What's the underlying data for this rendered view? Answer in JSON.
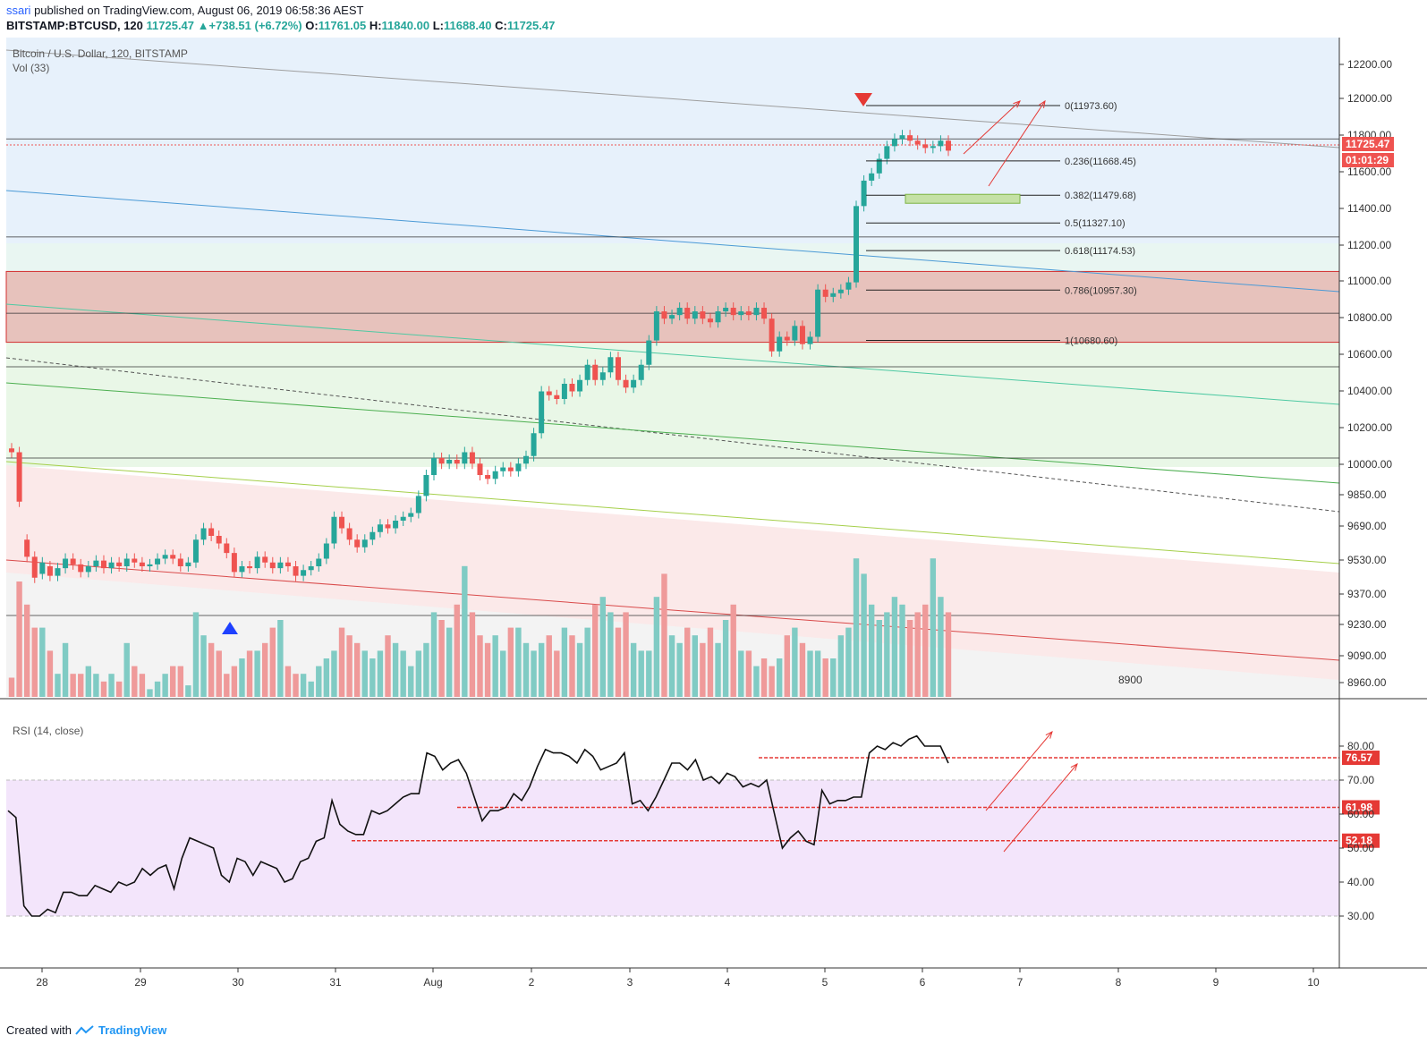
{
  "header": {
    "publisher": "ssari",
    "published_text": "published on TradingView.com, August 06, 2019 06:58:36 AEST",
    "symbol": "BITSTAMP:BTCUSD, 120",
    "last": "11725.47",
    "change": "▲+738.51 (+6.72%)",
    "o_label": "O:",
    "o_value": "11761.05",
    "h_label": "H:",
    "h_value": "11840.00",
    "l_label": "L:",
    "l_value": "11688.40",
    "c_label": "C:",
    "c_value": "11725.47"
  },
  "legend": {
    "series": "Bitcoin / U.S. Dollar, 120, BITSTAMP",
    "volume": "Vol (33)",
    "rsi": "RSI (14, close)"
  },
  "footer": {
    "created_with": "Created with",
    "brand": "TradingView"
  },
  "colors": {
    "up": "#26a69a",
    "down": "#ef5350",
    "red_line": "#e00000",
    "resistance": "#d32f2f"
  },
  "chart_data": [
    {
      "type": "candlestick",
      "title": "Bitcoin / U.S. Dollar, 120, BITSTAMP",
      "x_tick_labels": [
        "28",
        "29",
        "30",
        "31",
        "Aug",
        "2",
        "3",
        "4",
        "5",
        "6",
        "7",
        "8",
        "9",
        "10"
      ],
      "y_tick_labels": [
        "12200.00",
        "12000.00",
        "11800.00",
        "11600.00",
        "11400.00",
        "11200.00",
        "11000.00",
        "10800.00",
        "10600.00",
        "10400.00",
        "10200.00",
        "10000.00",
        "9850.00",
        "9690.00",
        "9530.00",
        "9370.00",
        "9230.00",
        "9090.00",
        "8960.00"
      ],
      "price_label": "11725.47",
      "countdown_label": "01:01:29",
      "extra_label": "8900",
      "fib_levels": [
        {
          "ratio": "0",
          "price": 11973.6,
          "label": "0(11973.60)"
        },
        {
          "ratio": "0.236",
          "price": 11668.45,
          "label": "0.236(11668.45)"
        },
        {
          "ratio": "0.382",
          "price": 11479.68,
          "label": "0.382(11479.68)"
        },
        {
          "ratio": "0.5",
          "price": 11327.1,
          "label": "0.5(11327.10)"
        },
        {
          "ratio": "0.618",
          "price": 11174.53,
          "label": "0.618(11174.53)"
        },
        {
          "ratio": "0.786",
          "price": 10957.3,
          "label": "0.786(10957.30)"
        },
        {
          "ratio": "1",
          "price": 10680.6,
          "label": "1(10680.60)"
        }
      ],
      "horizontal_levels": [
        11790,
        11250,
        10830,
        10500,
        10010,
        9250
      ],
      "resistance_zone": [
        10670,
        11060
      ],
      "candles": [
        [
          10100,
          10080
        ],
        [
          10080,
          9820
        ],
        [
          9620,
          9530
        ],
        [
          9530,
          9420
        ],
        [
          9440,
          9500
        ],
        [
          9480,
          9430
        ],
        [
          9430,
          9470
        ],
        [
          9470,
          9520
        ],
        [
          9520,
          9490
        ],
        [
          9490,
          9450
        ],
        [
          9450,
          9480
        ],
        [
          9480,
          9510
        ],
        [
          9510,
          9470
        ],
        [
          9470,
          9500
        ],
        [
          9500,
          9480
        ],
        [
          9480,
          9520
        ],
        [
          9520,
          9500
        ],
        [
          9500,
          9480
        ],
        [
          9480,
          9490
        ],
        [
          9490,
          9520
        ],
        [
          9520,
          9540
        ],
        [
          9540,
          9520
        ],
        [
          9520,
          9480
        ],
        [
          9480,
          9500
        ],
        [
          9500,
          9620
        ],
        [
          9620,
          9680
        ],
        [
          9680,
          9640
        ],
        [
          9640,
          9600
        ],
        [
          9600,
          9550
        ],
        [
          9550,
          9450
        ],
        [
          9450,
          9480
        ],
        [
          9480,
          9470
        ],
        [
          9470,
          9530
        ],
        [
          9530,
          9500
        ],
        [
          9500,
          9470
        ],
        [
          9470,
          9500
        ],
        [
          9500,
          9480
        ],
        [
          9480,
          9430
        ],
        [
          9430,
          9460
        ],
        [
          9460,
          9480
        ],
        [
          9480,
          9520
        ],
        [
          9520,
          9600
        ],
        [
          9600,
          9740
        ],
        [
          9740,
          9680
        ],
        [
          9680,
          9620
        ],
        [
          9620,
          9580
        ],
        [
          9580,
          9620
        ],
        [
          9620,
          9660
        ],
        [
          9660,
          9700
        ],
        [
          9700,
          9680
        ],
        [
          9680,
          9720
        ],
        [
          9720,
          9740
        ],
        [
          9740,
          9760
        ],
        [
          9760,
          9850
        ],
        [
          9850,
          9960
        ],
        [
          9960,
          10050
        ],
        [
          10050,
          10020
        ],
        [
          10020,
          10040
        ],
        [
          10040,
          10020
        ],
        [
          10020,
          10080
        ],
        [
          10080,
          10020
        ],
        [
          10020,
          9960
        ],
        [
          9960,
          9940
        ],
        [
          9940,
          9980
        ],
        [
          9980,
          10000
        ],
        [
          10000,
          9980
        ],
        [
          9980,
          10020
        ],
        [
          10020,
          10060
        ],
        [
          10060,
          10180
        ],
        [
          10180,
          10400
        ],
        [
          10400,
          10380
        ],
        [
          10380,
          10360
        ],
        [
          10360,
          10440
        ],
        [
          10440,
          10400
        ],
        [
          10400,
          10460
        ],
        [
          10460,
          10540
        ],
        [
          10540,
          10460
        ],
        [
          10460,
          10500
        ],
        [
          10500,
          10580
        ],
        [
          10580,
          10460
        ],
        [
          10460,
          10420
        ],
        [
          10420,
          10460
        ],
        [
          10460,
          10540
        ],
        [
          10540,
          10680
        ],
        [
          10680,
          10840
        ],
        [
          10840,
          10800
        ],
        [
          10800,
          10820
        ],
        [
          10820,
          10860
        ],
        [
          10860,
          10800
        ],
        [
          10800,
          10840
        ],
        [
          10840,
          10800
        ],
        [
          10800,
          10780
        ],
        [
          10780,
          10840
        ],
        [
          10840,
          10860
        ],
        [
          10860,
          10820
        ],
        [
          10820,
          10840
        ],
        [
          10840,
          10820
        ],
        [
          10820,
          10860
        ],
        [
          10860,
          10800
        ],
        [
          10800,
          10620
        ],
        [
          10620,
          10700
        ],
        [
          10700,
          10680
        ],
        [
          10680,
          10760
        ],
        [
          10760,
          10660
        ],
        [
          10660,
          10700
        ],
        [
          10700,
          10960
        ],
        [
          10960,
          10920
        ],
        [
          10920,
          10940
        ],
        [
          10940,
          10960
        ],
        [
          10960,
          11000
        ],
        [
          11000,
          11420
        ],
        [
          11420,
          11560
        ],
        [
          11560,
          11600
        ],
        [
          11600,
          11680
        ],
        [
          11680,
          11750
        ],
        [
          11750,
          11790
        ],
        [
          11790,
          11810
        ],
        [
          11810,
          11780
        ],
        [
          11780,
          11760
        ],
        [
          11760,
          11740
        ],
        [
          11740,
          11750
        ],
        [
          11750,
          11780
        ],
        [
          11780,
          11725
        ]
      ],
      "volume": [
        5,
        30,
        24,
        18,
        18,
        12,
        6,
        14,
        6,
        6,
        8,
        6,
        4,
        6,
        4,
        14,
        8,
        6,
        2,
        4,
        6,
        8,
        8,
        3,
        22,
        16,
        14,
        12,
        6,
        8,
        10,
        12,
        12,
        14,
        18,
        20,
        8,
        6,
        6,
        4,
        8,
        10,
        12,
        18,
        16,
        14,
        12,
        10,
        12,
        16,
        14,
        12,
        8,
        12,
        14,
        22,
        20,
        18,
        24,
        34,
        22,
        16,
        14,
        16,
        12,
        18,
        18,
        14,
        12,
        14,
        16,
        12,
        18,
        16,
        14,
        18,
        24,
        26,
        22,
        18,
        22,
        14,
        12,
        12,
        26,
        32,
        16,
        14,
        18,
        16,
        14,
        18,
        14,
        20,
        24,
        12,
        12,
        8,
        10,
        8,
        10,
        16,
        18,
        14,
        12,
        12,
        10,
        10,
        16,
        18,
        36,
        32,
        24,
        20,
        22,
        26,
        24,
        20,
        22,
        24,
        36,
        26,
        22
      ],
      "annotations": [
        {
          "type": "sell-marker",
          "label": "▼"
        },
        {
          "type": "buy-marker",
          "label": "▲"
        }
      ]
    },
    {
      "type": "line",
      "title": "RSI (14, close)",
      "y_tick_labels": [
        "80.00",
        "70.00",
        "60.00",
        "50.00",
        "40.00",
        "30.00"
      ],
      "level_labels": [
        "76.57",
        "61.98",
        "52.18"
      ],
      "ylim": [
        25,
        85
      ],
      "values": [
        61,
        59,
        33,
        30,
        30,
        32,
        31,
        37,
        37,
        36,
        36,
        39,
        38,
        37,
        40,
        39,
        40,
        44,
        42,
        44,
        45,
        38,
        47,
        53,
        52,
        51,
        50,
        42,
        40,
        47,
        46,
        42,
        46,
        45,
        44,
        40,
        41,
        46,
        47,
        52,
        53,
        64,
        57,
        55,
        54,
        54,
        61,
        60,
        61,
        63,
        65,
        66,
        66,
        78,
        77,
        73,
        75,
        76,
        72,
        65,
        58,
        61,
        61,
        62,
        66,
        64,
        68,
        74,
        79,
        78,
        78,
        77,
        75,
        79,
        77,
        73,
        74,
        75,
        78,
        63,
        64,
        61,
        65,
        70,
        75,
        75,
        73,
        76,
        70,
        71,
        69,
        72,
        71,
        68,
        69,
        68,
        70,
        60,
        50,
        53,
        55,
        52,
        51,
        67,
        63,
        64,
        64,
        65,
        65,
        78,
        80,
        79,
        81,
        80,
        82,
        83,
        80,
        80,
        80,
        75
      ]
    }
  ]
}
